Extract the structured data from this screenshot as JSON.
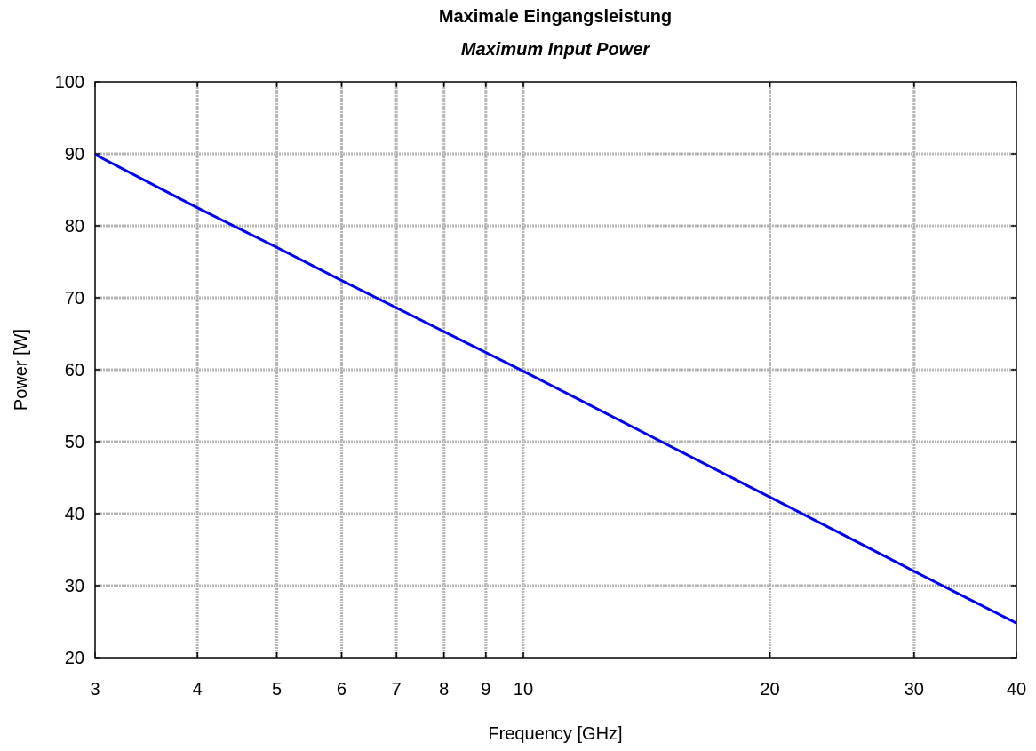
{
  "chart_data": {
    "type": "line",
    "title": "Maximale Eingangsleistung",
    "subtitle": "Maximum Input Power",
    "xlabel": "Frequency [GHz]",
    "ylabel": "Power [W]",
    "x_scale": "log",
    "xlim": [
      3,
      40
    ],
    "ylim": [
      20,
      100
    ],
    "x_ticks": [
      3,
      4,
      5,
      6,
      7,
      8,
      9,
      10,
      20,
      30,
      40
    ],
    "x_tick_labels": [
      "3",
      "4",
      "5",
      "6",
      "7",
      "8",
      "9",
      "10",
      "20",
      "30",
      "40"
    ],
    "y_ticks": [
      20,
      30,
      40,
      50,
      60,
      70,
      80,
      90,
      100
    ],
    "y_tick_labels": [
      "20",
      "30",
      "40",
      "50",
      "60",
      "70",
      "80",
      "90",
      "100"
    ],
    "grid": true,
    "series": [
      {
        "color": "#0000ee",
        "x": [
          3,
          4,
          5,
          6,
          7,
          8,
          9,
          10,
          20,
          30,
          40
        ],
        "y": [
          89.9,
          82.5,
          77.0,
          72.4,
          68.6,
          65.3,
          62.4,
          59.8,
          42.3,
          32.0,
          24.8
        ]
      }
    ]
  }
}
